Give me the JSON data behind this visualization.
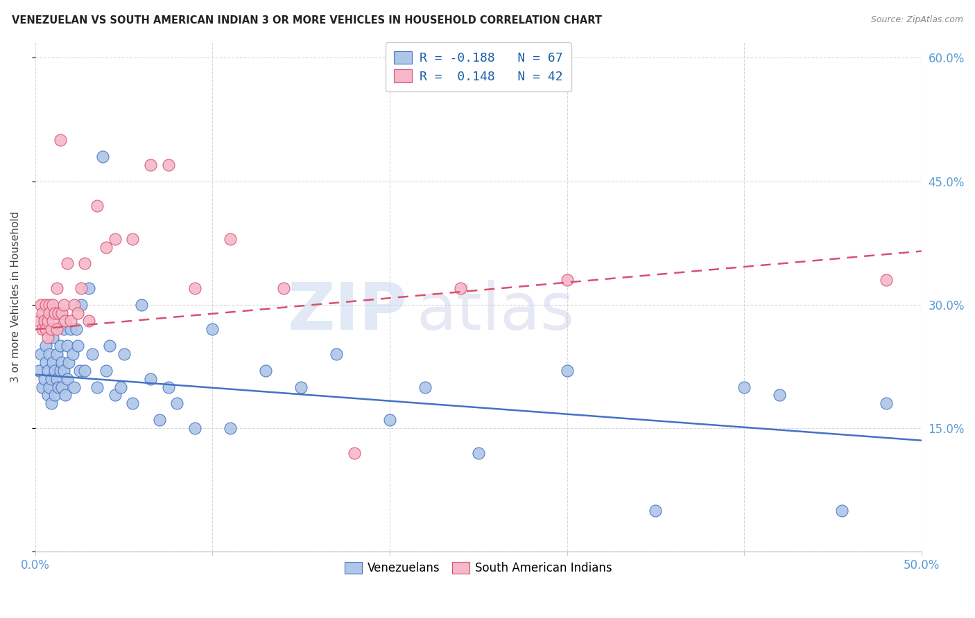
{
  "title": "VENEZUELAN VS SOUTH AMERICAN INDIAN 3 OR MORE VEHICLES IN HOUSEHOLD CORRELATION CHART",
  "source": "Source: ZipAtlas.com",
  "ylabel": "3 or more Vehicles in Household",
  "xlim": [
    0.0,
    0.5
  ],
  "ylim": [
    0.0,
    0.62
  ],
  "legend_label1": "Venezuelans",
  "legend_label2": "South American Indians",
  "R_venezuelan": -0.188,
  "N_venezuelan": 67,
  "R_south_american": 0.148,
  "N_south_american": 42,
  "color_venezuelan": "#aec6e8",
  "color_south_american": "#f4b8c8",
  "line_color_venezuelan": "#4472c4",
  "line_color_south_american": "#d94f6e",
  "background_color": "#ffffff",
  "watermark_zip": "ZIP",
  "watermark_atlas": "atlas",
  "ven_line_x0": 0.0,
  "ven_line_y0": 0.215,
  "ven_line_x1": 0.5,
  "ven_line_y1": 0.135,
  "sa_line_x0": 0.0,
  "sa_line_y0": 0.27,
  "sa_line_x1": 0.5,
  "sa_line_y1": 0.365,
  "venezuelan_x": [
    0.002,
    0.003,
    0.004,
    0.005,
    0.006,
    0.006,
    0.007,
    0.007,
    0.008,
    0.008,
    0.009,
    0.009,
    0.01,
    0.01,
    0.011,
    0.011,
    0.012,
    0.012,
    0.013,
    0.014,
    0.014,
    0.015,
    0.015,
    0.016,
    0.016,
    0.017,
    0.018,
    0.018,
    0.019,
    0.02,
    0.021,
    0.022,
    0.023,
    0.024,
    0.025,
    0.026,
    0.028,
    0.03,
    0.032,
    0.035,
    0.038,
    0.04,
    0.042,
    0.045,
    0.048,
    0.05,
    0.055,
    0.06,
    0.065,
    0.07,
    0.075,
    0.08,
    0.09,
    0.1,
    0.11,
    0.13,
    0.15,
    0.17,
    0.2,
    0.22,
    0.25,
    0.3,
    0.35,
    0.4,
    0.42,
    0.455,
    0.48
  ],
  "venezuelan_y": [
    0.22,
    0.24,
    0.2,
    0.21,
    0.25,
    0.23,
    0.19,
    0.22,
    0.2,
    0.24,
    0.21,
    0.18,
    0.23,
    0.26,
    0.22,
    0.19,
    0.24,
    0.21,
    0.2,
    0.22,
    0.25,
    0.23,
    0.2,
    0.27,
    0.22,
    0.19,
    0.25,
    0.21,
    0.23,
    0.27,
    0.24,
    0.2,
    0.27,
    0.25,
    0.22,
    0.3,
    0.22,
    0.32,
    0.24,
    0.2,
    0.48,
    0.22,
    0.25,
    0.19,
    0.2,
    0.24,
    0.18,
    0.3,
    0.21,
    0.16,
    0.2,
    0.18,
    0.15,
    0.27,
    0.15,
    0.22,
    0.2,
    0.24,
    0.16,
    0.2,
    0.12,
    0.22,
    0.05,
    0.2,
    0.19,
    0.05,
    0.18
  ],
  "south_american_x": [
    0.002,
    0.003,
    0.004,
    0.004,
    0.005,
    0.006,
    0.006,
    0.007,
    0.007,
    0.008,
    0.008,
    0.009,
    0.01,
    0.01,
    0.011,
    0.012,
    0.012,
    0.013,
    0.014,
    0.015,
    0.016,
    0.017,
    0.018,
    0.02,
    0.022,
    0.024,
    0.026,
    0.028,
    0.03,
    0.035,
    0.04,
    0.045,
    0.055,
    0.065,
    0.075,
    0.09,
    0.11,
    0.14,
    0.18,
    0.24,
    0.3,
    0.48
  ],
  "south_american_y": [
    0.28,
    0.3,
    0.27,
    0.29,
    0.28,
    0.3,
    0.27,
    0.28,
    0.26,
    0.3,
    0.29,
    0.27,
    0.3,
    0.28,
    0.29,
    0.32,
    0.27,
    0.29,
    0.5,
    0.29,
    0.3,
    0.28,
    0.35,
    0.28,
    0.3,
    0.29,
    0.32,
    0.35,
    0.28,
    0.42,
    0.37,
    0.38,
    0.38,
    0.47,
    0.47,
    0.32,
    0.38,
    0.32,
    0.12,
    0.32,
    0.33,
    0.33
  ]
}
